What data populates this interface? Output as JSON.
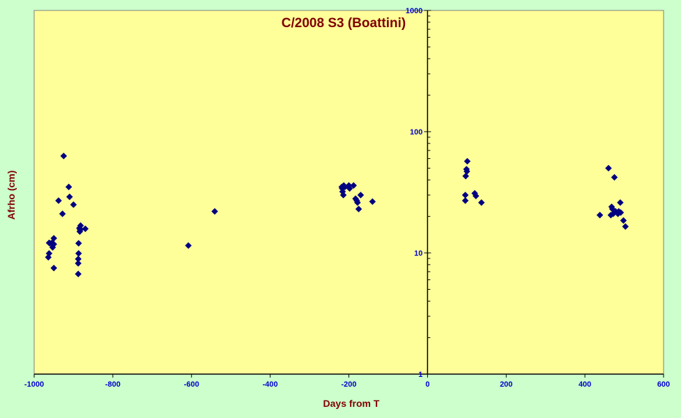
{
  "chart_data": {
    "type": "scatter",
    "title": "C/2008 S3 (Boattini)",
    "xlabel": "Days from T",
    "ylabel": "Afrho (cm)",
    "xlim": [
      -1000,
      600
    ],
    "ylim": [
      1,
      1000
    ],
    "yscale": "log",
    "x_ticks": [
      "-1000",
      "-800",
      "-600",
      "-400",
      "-200",
      "0",
      "200",
      "400",
      "600"
    ],
    "y_ticks": [
      "1",
      "10",
      "100",
      "1000"
    ],
    "grid": false,
    "legend": "none",
    "colors": {
      "background": "#ccffcc",
      "plot_area": "#ffff99",
      "marker": "#000080",
      "title": "#800000",
      "tick_labels": "#0000cc"
    },
    "series": [
      {
        "x": [
          -964,
          -962,
          -962,
          -960,
          -955,
          -953,
          -950,
          -950,
          -950,
          -938,
          -928,
          -925,
          -912,
          -910,
          -900,
          -888,
          -888,
          -888,
          -887,
          -887,
          -885,
          -884,
          -883,
          -882,
          -870,
          -608,
          -541,
          -218,
          -217,
          -216,
          -214,
          -213,
          -210,
          -200,
          -198,
          -188,
          -183,
          -180,
          -178,
          -175,
          -170,
          -140,
          96,
          96,
          97,
          99,
          100,
          101,
          120,
          123,
          137,
          438,
          460,
          466,
          468,
          470,
          472,
          475,
          478,
          484,
          486,
          490,
          491,
          498,
          503
        ],
        "y": [
          9.2,
          9.9,
          12.1,
          12.0,
          12.1,
          11.1,
          13.2,
          7.5,
          11.8,
          27.0,
          21.0,
          63.0,
          35.0,
          29.0,
          25.0,
          6.7,
          8.2,
          8.9,
          9.9,
          12.0,
          16.0,
          15.0,
          15.5,
          16.8,
          15.8,
          11.5,
          22.0,
          35.0,
          34.0,
          32.0,
          30.0,
          36.0,
          35.0,
          36.0,
          34.0,
          36.0,
          28.0,
          27.0,
          26.0,
          23.0,
          30.0,
          26.5,
          27.0,
          30.0,
          43.0,
          49.0,
          47.0,
          57.0,
          31.0,
          29.5,
          26.0,
          20.5,
          50.0,
          20.5,
          24.0,
          23.0,
          21.0,
          42.0,
          22.0,
          21.0,
          22.0,
          26.0,
          21.5,
          18.5,
          16.5
        ]
      }
    ]
  }
}
